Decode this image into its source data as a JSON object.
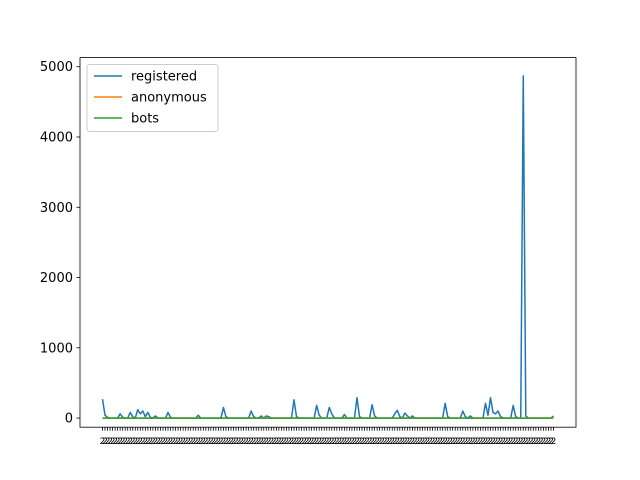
{
  "chart_data": {
    "type": "line",
    "title": "",
    "xlabel": "",
    "ylabel": "",
    "ylim": [
      -130,
      5130
    ],
    "yticks": [
      0,
      1000,
      2000,
      3000,
      4000,
      5000
    ],
    "ytick_labels": [
      "0",
      "1000",
      "2000",
      "3000",
      "4000",
      "5000"
    ],
    "x_count": 180,
    "x_tick_label_text": "2",
    "legend_position": "upper left",
    "grid": false,
    "series": [
      {
        "name": "registered",
        "color": "#1f77b4",
        "spikes": [
          [
            0,
            270
          ],
          [
            1,
            40
          ],
          [
            2,
            10
          ],
          [
            7,
            60
          ],
          [
            8,
            10
          ],
          [
            11,
            80
          ],
          [
            12,
            20
          ],
          [
            14,
            120
          ],
          [
            15,
            60
          ],
          [
            16,
            100
          ],
          [
            17,
            20
          ],
          [
            18,
            80
          ],
          [
            19,
            10
          ],
          [
            21,
            30
          ],
          [
            26,
            80
          ],
          [
            27,
            10
          ],
          [
            38,
            40
          ],
          [
            48,
            150
          ],
          [
            49,
            20
          ],
          [
            59,
            100
          ],
          [
            60,
            20
          ],
          [
            63,
            30
          ],
          [
            65,
            30
          ],
          [
            66,
            20
          ],
          [
            76,
            260
          ],
          [
            77,
            20
          ],
          [
            85,
            180
          ],
          [
            86,
            40
          ],
          [
            90,
            150
          ],
          [
            91,
            60
          ],
          [
            96,
            50
          ],
          [
            101,
            290
          ],
          [
            102,
            20
          ],
          [
            107,
            190
          ],
          [
            108,
            30
          ],
          [
            116,
            60
          ],
          [
            117,
            110
          ],
          [
            118,
            20
          ],
          [
            120,
            70
          ],
          [
            121,
            30
          ],
          [
            123,
            30
          ],
          [
            136,
            210
          ],
          [
            137,
            20
          ],
          [
            143,
            100
          ],
          [
            144,
            20
          ],
          [
            146,
            30
          ],
          [
            152,
            210
          ],
          [
            153,
            40
          ],
          [
            154,
            290
          ],
          [
            155,
            80
          ],
          [
            156,
            60
          ],
          [
            157,
            100
          ],
          [
            158,
            20
          ],
          [
            163,
            180
          ],
          [
            164,
            20
          ],
          [
            167,
            4870
          ],
          [
            168,
            30
          ],
          [
            179,
            30
          ]
        ]
      },
      {
        "name": "anonymous",
        "color": "#ff7f0e",
        "spikes": []
      },
      {
        "name": "bots",
        "color": "#2ca02c",
        "spikes": [
          [
            179,
            10
          ]
        ]
      }
    ]
  }
}
